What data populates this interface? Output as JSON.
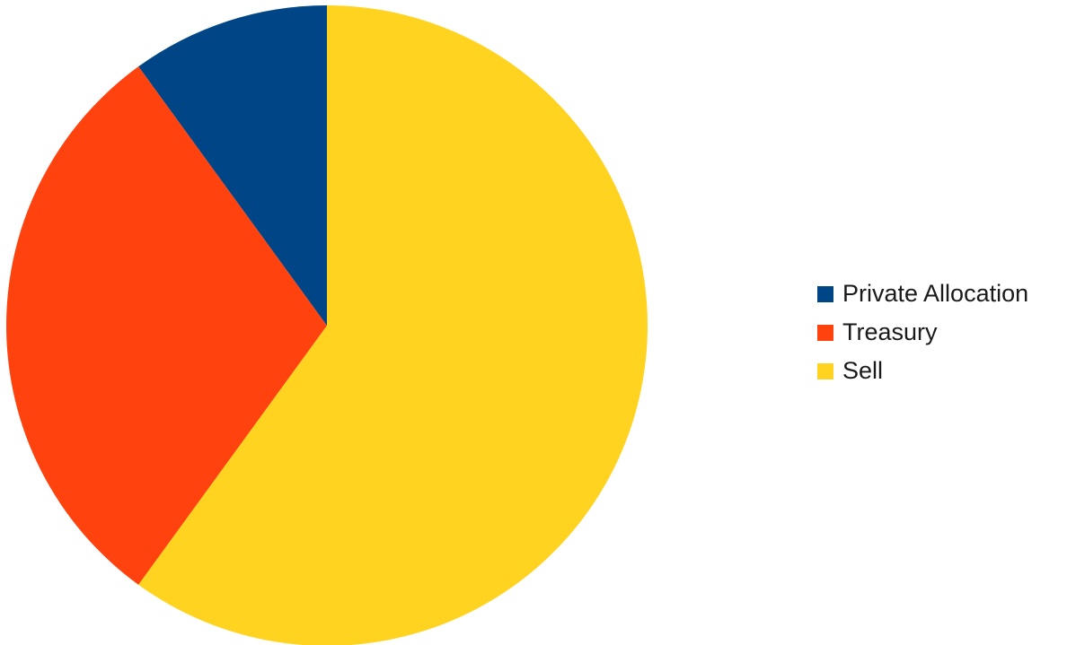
{
  "chart_data": {
    "type": "pie",
    "slices": [
      {
        "label": "Private Allocation",
        "value": 10,
        "color": "#004586"
      },
      {
        "label": "Treasury",
        "value": 30,
        "color": "#ff420e"
      },
      {
        "label": "Sell",
        "value": 60,
        "color": "#ffd320"
      }
    ],
    "start_angle_deg": 0,
    "direction": "counterclockwise",
    "legend_position": "right"
  },
  "legend": {
    "items": [
      {
        "label": "Private Allocation",
        "color": "#004586"
      },
      {
        "label": "Treasury",
        "color": "#ff420e"
      },
      {
        "label": "Sell",
        "color": "#ffd320"
      }
    ]
  }
}
